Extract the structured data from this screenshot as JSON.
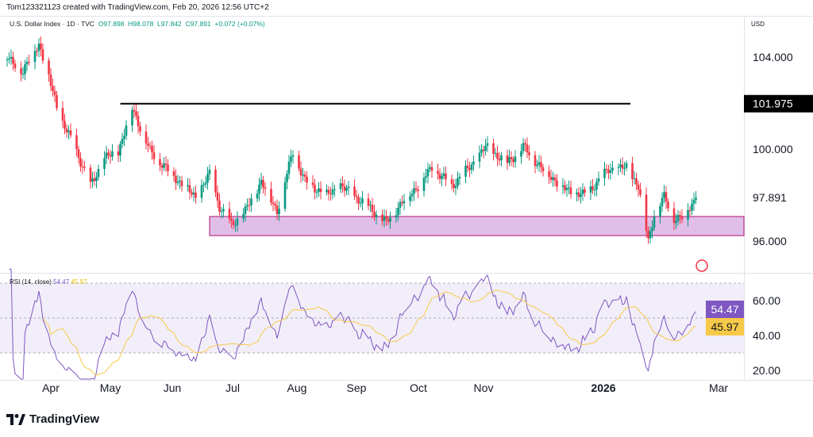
{
  "header": {
    "credit": "Tom123321123 created with TradingView.com, Feb 20, 2026 12:56 UTC+2",
    "symbol": "U.S. Dollar Index · 1D · TVC",
    "open": "O97.898",
    "high": "H98.078",
    "low": "L97.842",
    "close": "C97.891",
    "change": "+0.072 (+0.07%)"
  },
  "currency": "USD",
  "rsi": {
    "label": "RSI (14, close)",
    "value": "54.47",
    "ma": "45.97"
  },
  "logo": "TradingView",
  "colors": {
    "up": "#089981",
    "down": "#f23645",
    "rsi": "#7e57c2",
    "rsi_ma": "#f7c948",
    "zone": "#e1bee7",
    "zone_border": "#b0127a",
    "line": "#000000"
  },
  "chart_data": {
    "type": "candlestick",
    "price_ticks": [
      "104.000",
      "100.000",
      "96.000"
    ],
    "price_labels": {
      "level": "101.975",
      "last": "97.891"
    },
    "rsi_ticks": [
      "60.00",
      "40.00",
      "20.00"
    ],
    "x_ticks": [
      "Apr",
      "May",
      "Jun",
      "Jul",
      "Aug",
      "Sep",
      "Oct",
      "Nov",
      "2026",
      "Mar"
    ],
    "close_points": [
      [
        "2025-03-10",
        103.9
      ],
      [
        "2025-03-18",
        103.4
      ],
      [
        "2025-03-26",
        104.6
      ],
      [
        "2025-04-03",
        102.2
      ],
      [
        "2025-04-05",
        101.5
      ],
      [
        "2025-04-14",
        99.9
      ],
      [
        "2025-04-21",
        98.4
      ],
      [
        "2025-04-28",
        99.6
      ],
      [
        "2025-05-05",
        99.9
      ],
      [
        "2025-05-12",
        101.8
      ],
      [
        "2025-05-21",
        99.9
      ],
      [
        "2025-06-01",
        98.9
      ],
      [
        "2025-06-13",
        97.9
      ],
      [
        "2025-06-20",
        98.9
      ],
      [
        "2025-06-25",
        97.5
      ],
      [
        "2025-07-01",
        96.7
      ],
      [
        "2025-07-08",
        97.3
      ],
      [
        "2025-07-16",
        98.6
      ],
      [
        "2025-07-24",
        97.3
      ],
      [
        "2025-08-01",
        99.9
      ],
      [
        "2025-08-07",
        98.6
      ],
      [
        "2025-08-18",
        98.0
      ],
      [
        "2025-08-25",
        98.4
      ],
      [
        "2025-09-05",
        97.7
      ],
      [
        "2025-09-17",
        96.8
      ],
      [
        "2025-09-25",
        97.7
      ],
      [
        "2025-10-03",
        98.4
      ],
      [
        "2025-10-10",
        99.2
      ],
      [
        "2025-10-20",
        98.4
      ],
      [
        "2025-10-31",
        99.4
      ],
      [
        "2025-11-06",
        100.1
      ],
      [
        "2025-11-17",
        99.4
      ],
      [
        "2025-11-25",
        100.1
      ],
      [
        "2025-12-05",
        99.1
      ],
      [
        "2025-12-17",
        98.2
      ],
      [
        "2025-12-26",
        98.0
      ],
      [
        "2026-01-07",
        99.1
      ],
      [
        "2026-01-16",
        99.2
      ],
      [
        "2026-01-22",
        98.4
      ],
      [
        "2026-01-26",
        96.5
      ],
      [
        "2026-01-27",
        96.0
      ],
      [
        "2026-01-30",
        97.2
      ],
      [
        "2026-02-04",
        97.9
      ],
      [
        "2026-02-09",
        97.0
      ],
      [
        "2026-02-13",
        97.0
      ],
      [
        "2026-02-20",
        97.891
      ]
    ],
    "horizontal_line": {
      "price": 101.975,
      "from": "2025-05-06",
      "to": "2026-01-18"
    },
    "support_zone": {
      "low": 96.24,
      "high": 97.07,
      "from": "2025-06-20"
    },
    "rsi_levels": [
      70,
      50,
      30
    ]
  }
}
